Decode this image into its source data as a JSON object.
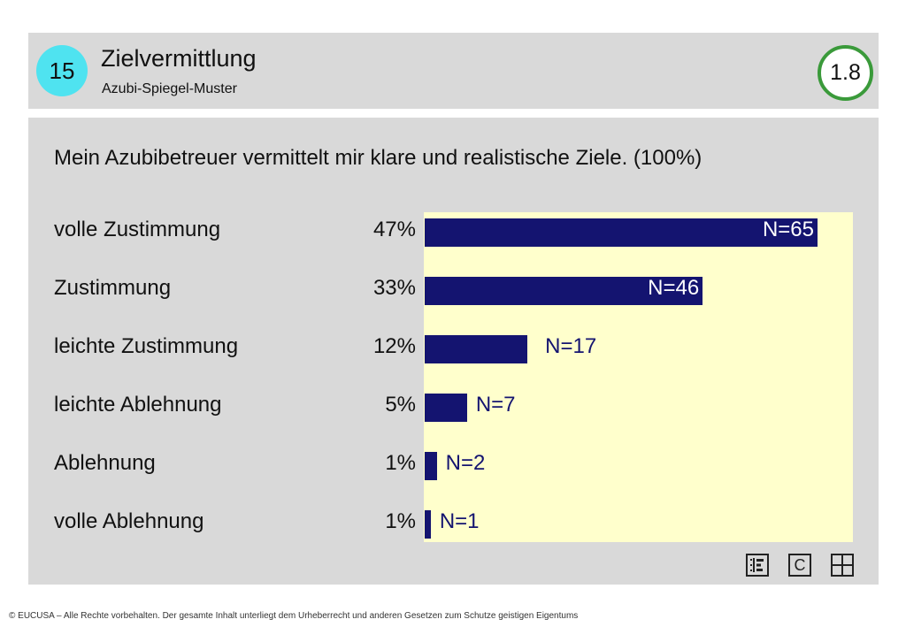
{
  "header": {
    "number": "15",
    "title": "Zielvermittlung",
    "subtitle": "Azubi-Spiegel-Muster",
    "version": "1.8"
  },
  "question": "Mein Azubibetreuer vermittelt mir klare und realistische Ziele. (100%)",
  "chart_data": {
    "type": "bar",
    "orientation": "horizontal",
    "categories": [
      "volle Zustimmung",
      "Zustimmung",
      "leichte Zustimmung",
      "leichte Ablehnung",
      "Ablehnung",
      "volle Ablehnung"
    ],
    "percent_labels": [
      "47%",
      "33%",
      "12%",
      "5%",
      "1%",
      "1%"
    ],
    "values": [
      65,
      46,
      17,
      7,
      2,
      1
    ],
    "n_labels": [
      "N=65",
      "N=46",
      "N=17",
      "N=7",
      "N=2",
      "N=1"
    ],
    "xlim": [
      0,
      71
    ],
    "bar_color": "#141470",
    "plot_background": "#ffffcc"
  },
  "tools": {
    "tool1_icon": "list-chart-icon",
    "tool2_label": "C",
    "tool3_icon": "grid-icon"
  },
  "footer": "© EUCUSA – Alle Rechte vorbehalten. Der gesamte Inhalt unterliegt dem Urheberrecht und anderen Gesetzen zum Schutze geistigen Eigentums"
}
